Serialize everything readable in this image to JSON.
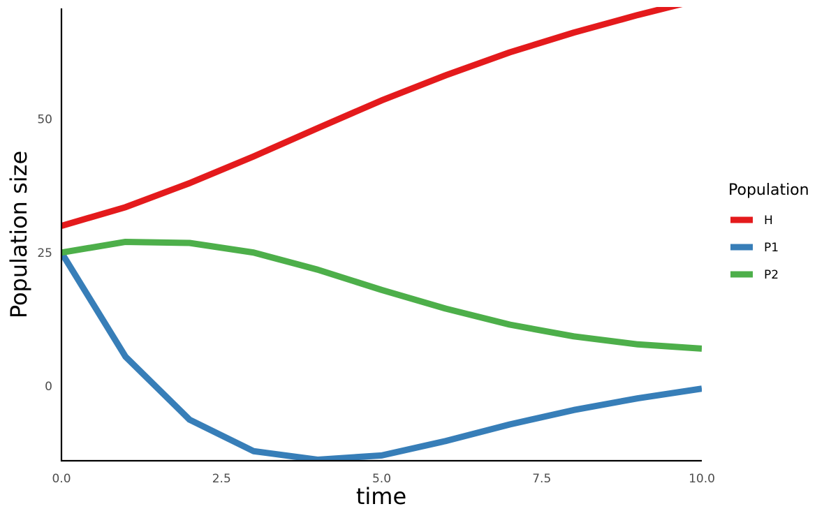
{
  "chart_data": {
    "type": "line",
    "title": "",
    "xlabel": "time",
    "ylabel": "Population size",
    "x": [
      0,
      1,
      2,
      3,
      4,
      5,
      6,
      7,
      8,
      9,
      10
    ],
    "xlim": [
      0,
      10
    ],
    "ylim": [
      -14,
      71
    ],
    "x_ticks": [
      "0.0",
      "2.5",
      "5.0",
      "7.5",
      "10.0"
    ],
    "y_ticks": [
      "0",
      "25",
      "50"
    ],
    "grid": false,
    "legend": {
      "title": "Population",
      "position": "right"
    },
    "series": [
      {
        "name": "H",
        "color": "#e41a1c",
        "values": [
          30,
          33.5,
          38,
          43,
          48.3,
          53.5,
          58.2,
          62.5,
          66.2,
          69.5,
          72.5
        ]
      },
      {
        "name": "P1",
        "color": "#377eb8",
        "values": [
          25,
          5.5,
          -6.3,
          -12.2,
          -13.8,
          -13,
          -10.3,
          -7.2,
          -4.5,
          -2.3,
          -0.5
        ]
      },
      {
        "name": "P2",
        "color": "#4daf4a",
        "values": [
          25,
          27,
          26.8,
          25,
          21.8,
          18,
          14.5,
          11.5,
          9.3,
          7.8,
          7
        ]
      }
    ]
  }
}
